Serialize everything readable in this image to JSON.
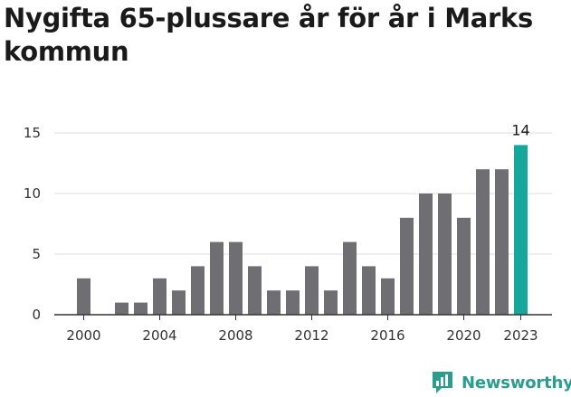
{
  "chart_data": {
    "type": "bar",
    "title": "Nygifta 65-plussare år för år i Marks kommun",
    "categories": [
      "2000",
      "2001",
      "2002",
      "2003",
      "2004",
      "2005",
      "2006",
      "2007",
      "2008",
      "2009",
      "2010",
      "2011",
      "2012",
      "2013",
      "2014",
      "2015",
      "2016",
      "2017",
      "2018",
      "2019",
      "2020",
      "2021",
      "2022",
      "2023"
    ],
    "values": [
      3,
      0,
      1,
      1,
      3,
      2,
      4,
      6,
      6,
      4,
      2,
      2,
      4,
      2,
      6,
      4,
      3,
      8,
      10,
      10,
      8,
      12,
      12,
      14
    ],
    "x_tick_labels": [
      "2000",
      "2004",
      "2008",
      "2012",
      "2016",
      "2020",
      "2023"
    ],
    "y_ticks": [
      0,
      5,
      10,
      15
    ],
    "ylim": [
      0,
      16
    ],
    "highlight": {
      "category": "2023",
      "label": "14"
    },
    "xlabel": "",
    "ylabel": "",
    "grid": true
  },
  "colors": {
    "bar": "#6f6e73",
    "highlight": "#14a79a",
    "grid": "#dddddd",
    "axis": "#333333"
  },
  "brand": {
    "name": "Newsworthy",
    "icon": "newsworthy-logo-icon"
  }
}
